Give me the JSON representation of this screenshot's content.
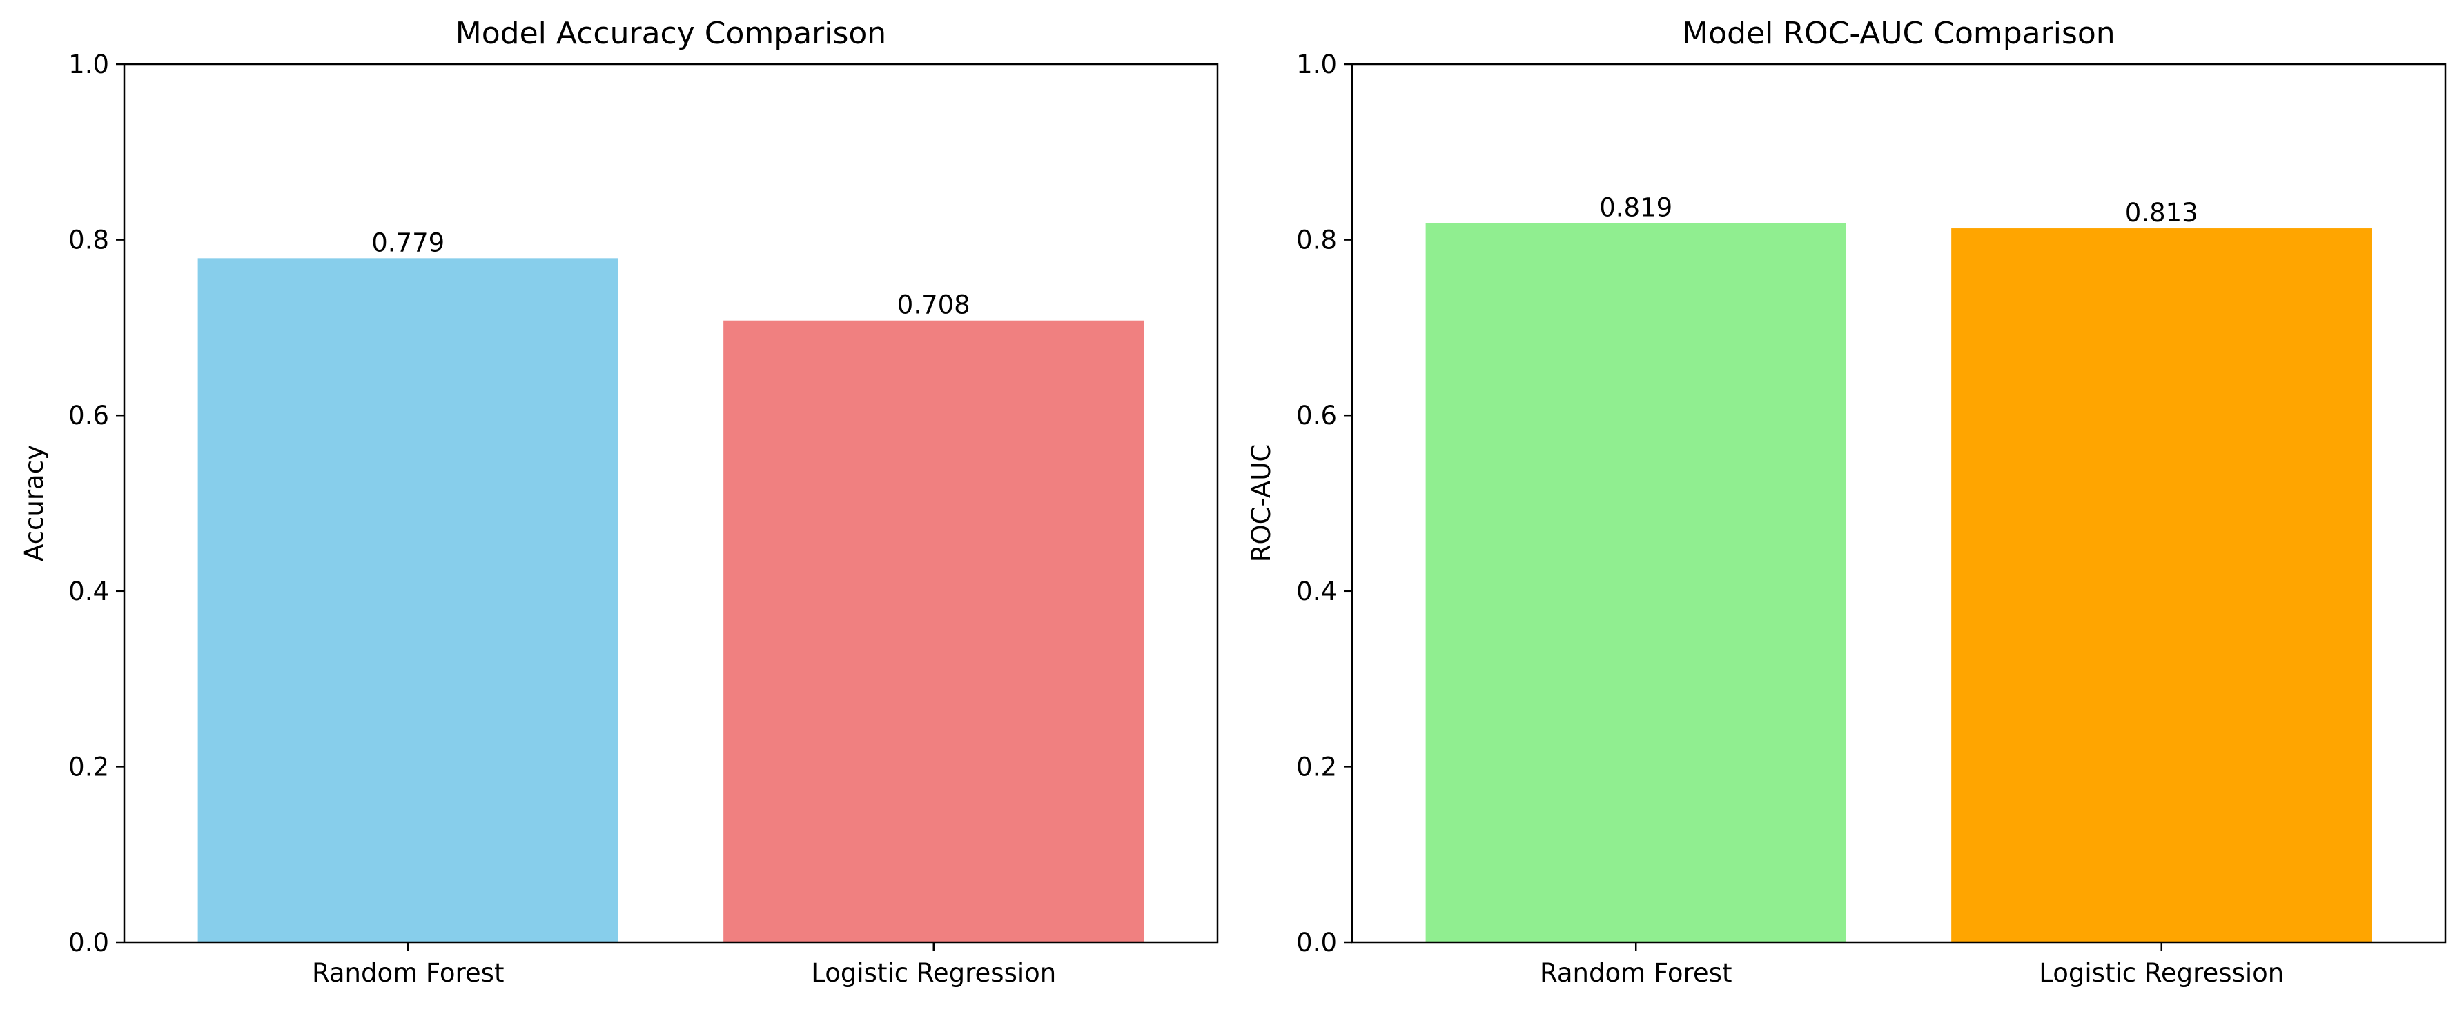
{
  "chart_data": [
    {
      "type": "bar",
      "title": "Model Accuracy Comparison",
      "xlabel": "",
      "ylabel": "Accuracy",
      "categories": [
        "Random Forest",
        "Logistic Regression"
      ],
      "values": [
        0.779,
        0.708
      ],
      "value_labels": [
        "0.779",
        "0.708"
      ],
      "colors": [
        "#87ceeb",
        "#f08080"
      ],
      "ylim": [
        0,
        1.0
      ],
      "yticks": [
        "0.0",
        "0.2",
        "0.4",
        "0.6",
        "0.8",
        "1.0"
      ],
      "grid": false,
      "legend": "none"
    },
    {
      "type": "bar",
      "title": "Model ROC-AUC Comparison",
      "xlabel": "",
      "ylabel": "ROC-AUC",
      "categories": [
        "Random Forest",
        "Logistic Regression"
      ],
      "values": [
        0.819,
        0.813
      ],
      "value_labels": [
        "0.819",
        "0.813"
      ],
      "colors": [
        "#90ee90",
        "#ffa500"
      ],
      "ylim": [
        0,
        1.0
      ],
      "yticks": [
        "0.0",
        "0.2",
        "0.4",
        "0.6",
        "0.8",
        "1.0"
      ],
      "grid": false,
      "legend": "none"
    }
  ]
}
